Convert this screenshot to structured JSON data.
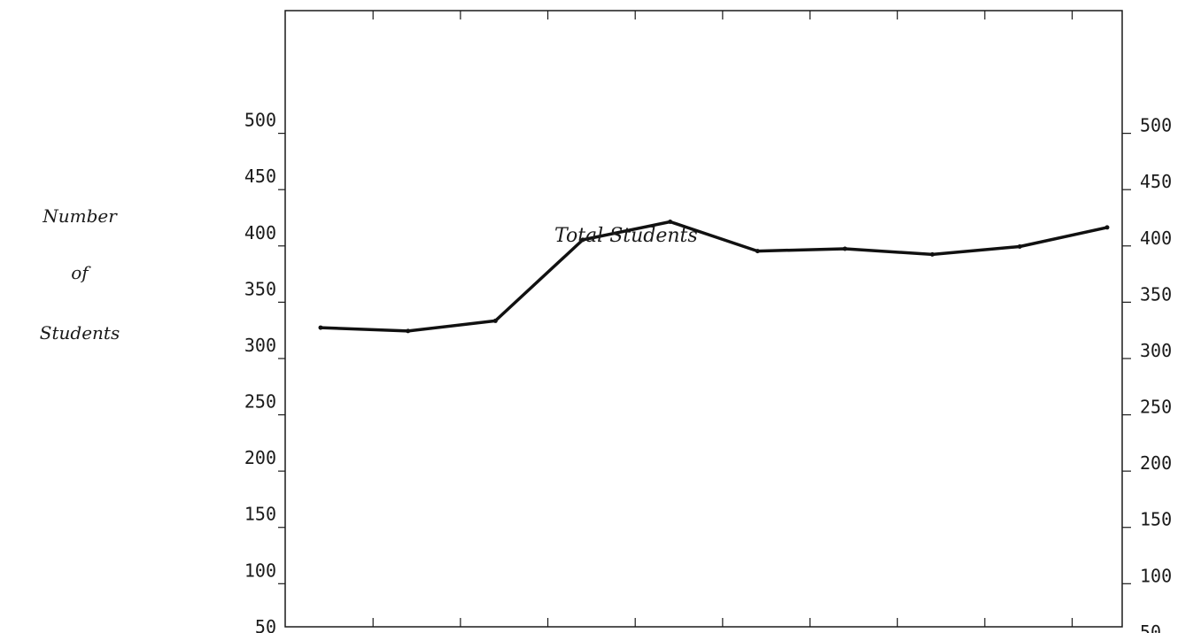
{
  "chart_data": {
    "type": "line",
    "title": "",
    "xlabel": "",
    "ylabel": [
      "Number",
      "of",
      "Students"
    ],
    "yticks": [
      50,
      100,
      150,
      200,
      250,
      300,
      350,
      400,
      450,
      500
    ],
    "ylim": [
      0,
      550
    ],
    "grid": false,
    "series": [
      {
        "name": "Total Students",
        "values": [
          318,
          315,
          324,
          396,
          412,
          386,
          388,
          383,
          390,
          407
        ]
      }
    ]
  }
}
